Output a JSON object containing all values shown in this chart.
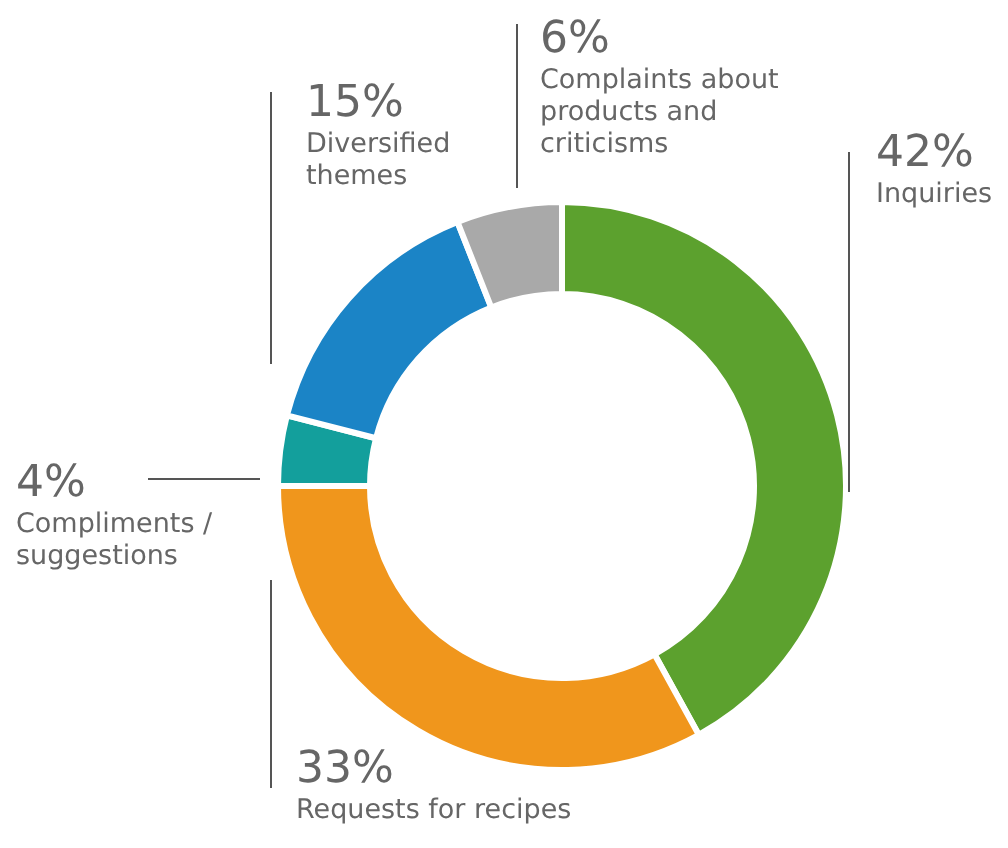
{
  "chart_data": {
    "type": "donut",
    "categories": [
      "Inquiries",
      "Requests for recipes",
      "Compliments / suggestions",
      "Diversified themes",
      "Complaints about products and criticisms"
    ],
    "values": [
      42,
      33,
      4,
      15,
      6
    ],
    "value_labels": [
      "42%",
      "33%",
      "4%",
      "15%",
      "6%"
    ],
    "colors": [
      "#5ca12e",
      "#f0961c",
      "#139f9c",
      "#1b84c6",
      "#a9a9a9"
    ],
    "legend": false
  }
}
